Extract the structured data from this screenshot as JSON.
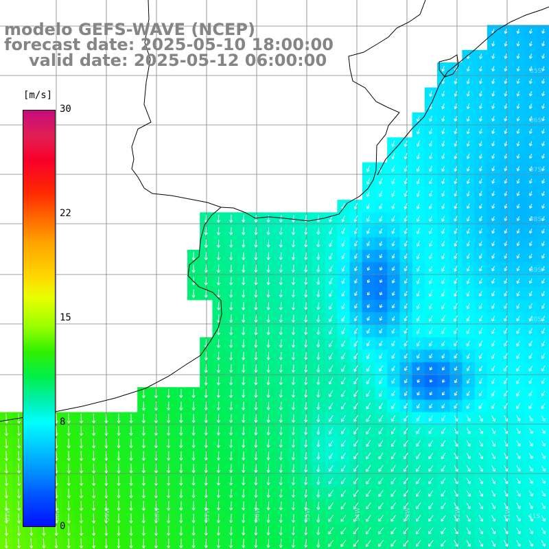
{
  "title": {
    "line1": "modelo GEFS-WAVE (NCEP)",
    "line2": "forecast date: 2025-05-10 18:00:00",
    "line3": "valid date: 2025-05-12 06:00:00"
  },
  "colorbar": {
    "unit": "[m/s]",
    "ticks": [
      "30",
      "22",
      "15",
      "8",
      "0"
    ],
    "range": [
      0,
      30
    ],
    "colors": [
      "#0010ff",
      "#0090ff",
      "#00ffff",
      "#00f0b0",
      "#30f000",
      "#e8ff00",
      "#ffa500",
      "#ff2a00",
      "#c70c7c"
    ]
  },
  "longitude_labels": [
    "61W",
    "60W",
    "59W",
    "58W",
    "57W",
    "56W",
    "55W",
    "54W",
    "53W",
    "52W",
    "51W",
    "41S"
  ],
  "latitude_labels": [
    "35S",
    "36S",
    "37S",
    "38S",
    "39S",
    "40S"
  ],
  "colors": {
    "land": "#ffffff",
    "coast": "#000000",
    "grid": "#808080",
    "arrows": "#ffffff",
    "title_text": "#858585"
  }
}
